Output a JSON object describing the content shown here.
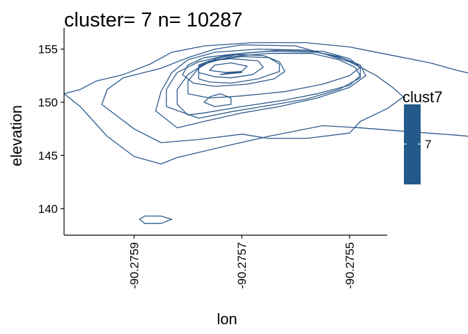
{
  "chart_data": {
    "type": "contour",
    "title": "cluster= 7 n= 10287",
    "xlabel": "lon",
    "ylabel": "elevation",
    "xlim": [
      -90.27603,
      -90.27543
    ],
    "ylim": [
      137.5,
      157
    ],
    "x_ticks": [
      {
        "value": -90.2759,
        "label": "-90.2759"
      },
      {
        "value": -90.2757,
        "label": "-90.2757"
      },
      {
        "value": -90.2755,
        "label": "-90.2755"
      }
    ],
    "y_ticks": [
      {
        "value": 140,
        "label": "140"
      },
      {
        "value": 145,
        "label": "145"
      },
      {
        "value": 150,
        "label": "150"
      },
      {
        "value": 155,
        "label": "155"
      }
    ],
    "contour_color": "#2c5a8c",
    "contours": [
      {
        "points": [
          [
            -90.27595,
            151.2
          ],
          [
            -90.27592,
            152.3
          ],
          [
            -90.27585,
            153.2
          ],
          [
            -90.2758,
            154.2
          ],
          [
            -90.27575,
            155.0
          ],
          [
            -90.2757,
            155.4
          ],
          [
            -90.2756,
            155.3
          ],
          [
            -90.27555,
            154.6
          ],
          [
            -90.2755,
            153.8
          ],
          [
            -90.27548,
            153.3
          ],
          [
            -90.27545,
            152.5
          ],
          [
            -90.27542,
            151.4
          ],
          [
            -90.2754,
            150.5
          ],
          [
            -90.27543,
            149.4
          ],
          [
            -90.27548,
            148.2
          ],
          [
            -90.2755,
            147.1
          ],
          [
            -90.27558,
            146.6
          ],
          [
            -90.27565,
            146.6
          ],
          [
            -90.2757,
            147.0
          ],
          [
            -90.27578,
            146.5
          ],
          [
            -90.27585,
            146.2
          ],
          [
            -90.2759,
            147.5
          ],
          [
            -90.27596,
            149.8
          ]
        ]
      },
      {
        "points": [
          [
            -90.276,
            151.2
          ],
          [
            -90.27597,
            152.0
          ],
          [
            -90.27592,
            152.6
          ],
          [
            -90.27587,
            153.6
          ],
          [
            -90.27583,
            154.7
          ],
          [
            -90.27577,
            155.3
          ],
          [
            -90.27568,
            155.6
          ],
          [
            -90.27558,
            155.6
          ],
          [
            -90.2755,
            155.2
          ],
          [
            -90.27542,
            154.4
          ],
          [
            -90.27535,
            153.7
          ],
          [
            -90.2753,
            153.0
          ],
          [
            -90.27525,
            152.4
          ],
          [
            -90.27518,
            151.7
          ],
          [
            -90.27515,
            151.3
          ],
          [
            -90.2751,
            150.5
          ],
          [
            -90.27503,
            149.6
          ],
          [
            -90.27508,
            148.6
          ],
          [
            -90.27504,
            147.9
          ],
          [
            -90.27508,
            146.5
          ],
          [
            -90.27514,
            146.0
          ],
          [
            -90.27518,
            146.0
          ],
          [
            -90.27524,
            146.6
          ],
          [
            -90.2753,
            146.9
          ],
          [
            -90.27538,
            147.2
          ],
          [
            -90.27548,
            147.6
          ],
          [
            -90.27555,
            147.8
          ],
          [
            -90.27565,
            146.8
          ],
          [
            -90.27572,
            146.0
          ],
          [
            -90.27577,
            145.4
          ],
          [
            -90.27582,
            144.8
          ],
          [
            -90.27585,
            144.2
          ],
          [
            -90.2759,
            144.9
          ],
          [
            -90.27595,
            146.8
          ],
          [
            -90.276,
            149.6
          ],
          [
            -90.27603,
            150.8
          ]
        ]
      },
      {
        "points": [
          [
            -90.2758,
            150.8
          ],
          [
            -90.2758,
            152.0
          ],
          [
            -90.27578,
            153.2
          ],
          [
            -90.27575,
            154.1
          ],
          [
            -90.2757,
            154.6
          ],
          [
            -90.27563,
            154.9
          ],
          [
            -90.27555,
            154.8
          ],
          [
            -90.2755,
            154.1
          ],
          [
            -90.27548,
            153.3
          ],
          [
            -90.2755,
            152.5
          ],
          [
            -90.27555,
            151.7
          ],
          [
            -90.27562,
            151.0
          ],
          [
            -90.2757,
            150.6
          ],
          [
            -90.27576,
            150.4
          ]
        ]
      },
      {
        "points": [
          [
            -90.27582,
            149.8
          ],
          [
            -90.27582,
            151.2
          ],
          [
            -90.2758,
            152.6
          ],
          [
            -90.27577,
            153.6
          ],
          [
            -90.27572,
            154.3
          ],
          [
            -90.27565,
            154.6
          ],
          [
            -90.27557,
            154.6
          ],
          [
            -90.27552,
            154.0
          ],
          [
            -90.27549,
            153.3
          ],
          [
            -90.27548,
            152.5
          ],
          [
            -90.2755,
            151.6
          ],
          [
            -90.27556,
            150.8
          ],
          [
            -90.27562,
            150.2
          ],
          [
            -90.2757,
            149.6
          ],
          [
            -90.27577,
            149.0
          ],
          [
            -90.2758,
            148.8
          ]
        ]
      },
      {
        "points": [
          [
            -90.27586,
            149.2
          ],
          [
            -90.27585,
            151.0
          ],
          [
            -90.27583,
            152.8
          ],
          [
            -90.2758,
            154.0
          ],
          [
            -90.27575,
            154.7
          ],
          [
            -90.27567,
            155.0
          ],
          [
            -90.27558,
            154.9
          ],
          [
            -90.27552,
            154.3
          ],
          [
            -90.27548,
            153.5
          ],
          [
            -90.27547,
            152.5
          ],
          [
            -90.2755,
            151.4
          ],
          [
            -90.27556,
            150.4
          ],
          [
            -90.27563,
            149.6
          ],
          [
            -90.2757,
            149.0
          ],
          [
            -90.27577,
            148.2
          ],
          [
            -90.27582,
            147.6
          ]
        ]
      },
      {
        "points": [
          [
            -90.27584,
            149.6
          ],
          [
            -90.27584,
            151.2
          ],
          [
            -90.27582,
            152.8
          ],
          [
            -90.27578,
            153.8
          ],
          [
            -90.27572,
            154.5
          ],
          [
            -90.27565,
            154.8
          ],
          [
            -90.27556,
            154.7
          ],
          [
            -90.27551,
            154.1
          ],
          [
            -90.27548,
            153.3
          ],
          [
            -90.27548,
            152.3
          ],
          [
            -90.27552,
            151.2
          ],
          [
            -90.27558,
            150.3
          ],
          [
            -90.27565,
            149.7
          ],
          [
            -90.27572,
            149.1
          ],
          [
            -90.27578,
            148.5
          ]
        ]
      },
      {
        "points": [
          [
            -90.27578,
            152.2
          ],
          [
            -90.27578,
            153.4
          ],
          [
            -90.27575,
            154.0
          ],
          [
            -90.2757,
            154.3
          ],
          [
            -90.27565,
            154.2
          ],
          [
            -90.27563,
            153.6
          ],
          [
            -90.27563,
            152.9
          ],
          [
            -90.27567,
            152.2
          ],
          [
            -90.27572,
            151.8
          ],
          [
            -90.27576,
            151.9
          ]
        ]
      },
      {
        "points": [
          [
            -90.27581,
            152.6
          ],
          [
            -90.2758,
            153.5
          ],
          [
            -90.27577,
            154.2
          ],
          [
            -90.27572,
            154.5
          ],
          [
            -90.27566,
            154.4
          ],
          [
            -90.27563,
            153.8
          ],
          [
            -90.27562,
            152.9
          ],
          [
            -90.27564,
            152.2
          ],
          [
            -90.27569,
            151.7
          ],
          [
            -90.27575,
            151.5
          ],
          [
            -90.27579,
            151.8
          ]
        ]
      },
      {
        "points": [
          [
            -90.27578,
            152.8
          ],
          [
            -90.27578,
            153.5
          ],
          [
            -90.27576,
            153.9
          ],
          [
            -90.27572,
            154.1
          ],
          [
            -90.27567,
            153.9
          ],
          [
            -90.27566,
            153.3
          ],
          [
            -90.27568,
            152.6
          ],
          [
            -90.27572,
            152.3
          ],
          [
            -90.27575,
            152.4
          ]
        ]
      },
      {
        "points": [
          [
            -90.27576,
            153.0
          ],
          [
            -90.27575,
            153.5
          ],
          [
            -90.27572,
            153.7
          ],
          [
            -90.27569,
            153.4
          ],
          [
            -90.2757,
            152.9
          ],
          [
            -90.27573,
            152.8
          ]
        ]
      },
      {
        "points": [
          [
            -90.27574,
            152.6
          ],
          [
            -90.27572,
            152.8
          ],
          [
            -90.2757,
            152.8
          ],
          [
            -90.27572,
            152.7
          ]
        ]
      },
      {
        "points": [
          [
            -90.27577,
            150.0
          ],
          [
            -90.27576,
            150.5
          ],
          [
            -90.27574,
            150.8
          ],
          [
            -90.27572,
            150.4
          ],
          [
            -90.27572,
            149.8
          ],
          [
            -90.27575,
            149.6
          ]
        ]
      },
      {
        "points": [
          [
            -90.27589,
            139.0
          ],
          [
            -90.27588,
            139.3
          ],
          [
            -90.27585,
            139.3
          ],
          [
            -90.27583,
            139.0
          ],
          [
            -90.27585,
            138.6
          ],
          [
            -90.27588,
            138.6
          ]
        ]
      }
    ],
    "legend": {
      "title": "clust7",
      "label": "7",
      "color": "#235a8b",
      "placement": "right"
    },
    "grid": false
  }
}
